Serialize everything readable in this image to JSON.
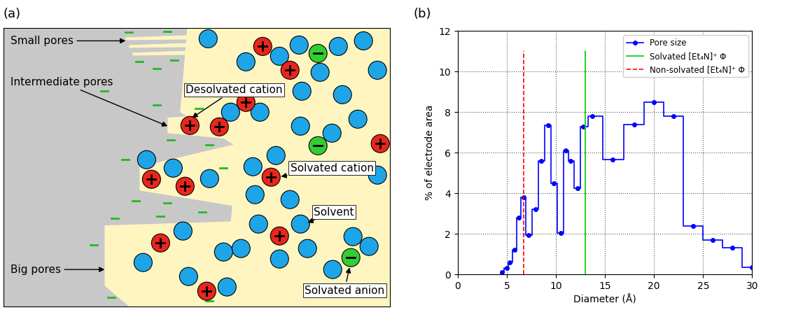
{
  "panel_labels": [
    "(a)",
    "(b)"
  ],
  "diagram": {
    "labels": [
      "Small pores",
      "Intermediate pores",
      "Desolvated cation",
      "Solvated cation",
      "Solvent",
      "Solvated anion",
      "Big pores"
    ]
  },
  "chart_data": {
    "type": "step",
    "x_label": "Diameter (Å)",
    "y_label": "% of electrode area",
    "xlim": [
      0,
      30
    ],
    "xticks": [
      0,
      5,
      10,
      15,
      20,
      25,
      30
    ],
    "ylim": [
      0,
      12
    ],
    "yticks": [
      0,
      2,
      4,
      6,
      8,
      10,
      12
    ],
    "grid": true,
    "legend": "upper right",
    "series": [
      {
        "name": "Pore size",
        "color": "#0000ff",
        "marker": "o",
        "line_style": "solid",
        "x": [
          4.5,
          5,
          5.3,
          5.8,
          6.2,
          6.7,
          7.2,
          7.9,
          8.5,
          9.2,
          9.8,
          10.5,
          11,
          11.5,
          12.2,
          12.8,
          13.7,
          15.8,
          18,
          20,
          22,
          24,
          26,
          28,
          30
        ],
        "values": [
          0.1,
          0.3,
          0.6,
          1.2,
          2.8,
          3.8,
          1.95,
          3.2,
          5.6,
          7.35,
          4.5,
          2.05,
          6.1,
          5.6,
          4.25,
          7.3,
          7.8,
          5.65,
          7.4,
          8.5,
          7.8,
          2.4,
          1.7,
          1.3,
          0.35
        ]
      }
    ],
    "vlines": [
      {
        "name": "Solvated [Et₄N]⁺ Φ",
        "x": 13,
        "ymax": 11,
        "color": "#00cc00",
        "line_style": "solid"
      },
      {
        "name": "Non-solvated [Et₄N]⁺ Φ",
        "x": 6.7,
        "ymax": 11,
        "color": "#ff0000",
        "line_style": "dashed"
      }
    ]
  }
}
